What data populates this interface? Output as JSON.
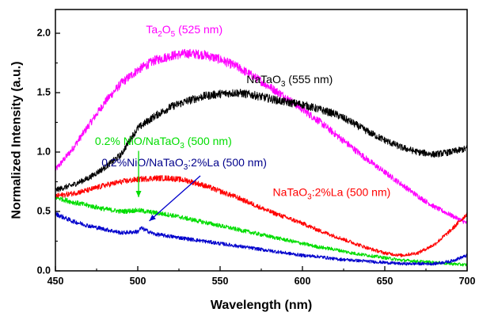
{
  "chart_data": {
    "type": "line",
    "xlabel": "Wavelength (nm)",
    "ylabel": "Normalized Intensity (a.u.)",
    "xlim": [
      450,
      700
    ],
    "ylim": [
      0.0,
      2.2
    ],
    "xticks": [
      450,
      500,
      550,
      600,
      650,
      700
    ],
    "yticks": [
      0.0,
      0.5,
      1.0,
      1.5,
      2.0
    ],
    "xtick_labels": [
      "450",
      "500",
      "550",
      "600",
      "650",
      "700"
    ],
    "ytick_labels": [
      "0.0",
      "0.5",
      "1.0",
      "1.5",
      "2.0"
    ],
    "grid": false,
    "legend": "none (inline labels)",
    "series": [
      {
        "color": "#ff00ff",
        "x": [
          450,
          460,
          470,
          480,
          490,
          500,
          510,
          520,
          530,
          540,
          550,
          560,
          570,
          580,
          590,
          600,
          610,
          620,
          630,
          640,
          650,
          660,
          670,
          680,
          690,
          700
        ],
        "y": [
          0.85,
          1.02,
          1.22,
          1.42,
          1.58,
          1.69,
          1.77,
          1.81,
          1.83,
          1.82,
          1.78,
          1.72,
          1.64,
          1.55,
          1.46,
          1.36,
          1.26,
          1.15,
          1.04,
          0.93,
          0.83,
          0.73,
          0.63,
          0.54,
          0.47,
          0.4
        ]
      },
      {
        "color": "#000000",
        "x": [
          450,
          460,
          470,
          480,
          490,
          495,
          500,
          510,
          520,
          530,
          540,
          550,
          560,
          570,
          580,
          590,
          600,
          610,
          620,
          630,
          640,
          650,
          660,
          670,
          680,
          690,
          700
        ],
        "y": [
          0.68,
          0.72,
          0.78,
          0.87,
          0.98,
          1.1,
          1.2,
          1.3,
          1.38,
          1.43,
          1.47,
          1.49,
          1.5,
          1.48,
          1.45,
          1.42,
          1.4,
          1.36,
          1.32,
          1.25,
          1.17,
          1.1,
          1.04,
          1.0,
          0.98,
          1.0,
          1.03
        ]
      },
      {
        "color": "#00dd00",
        "x": [
          450,
          460,
          470,
          480,
          490,
          500,
          510,
          520,
          530,
          540,
          550,
          560,
          570,
          580,
          590,
          600,
          610,
          620,
          630,
          640,
          650,
          660,
          670,
          680,
          690,
          700
        ],
        "y": [
          0.62,
          0.58,
          0.55,
          0.52,
          0.5,
          0.51,
          0.49,
          0.47,
          0.44,
          0.41,
          0.38,
          0.35,
          0.32,
          0.29,
          0.26,
          0.23,
          0.2,
          0.18,
          0.15,
          0.13,
          0.11,
          0.09,
          0.08,
          0.07,
          0.06,
          0.05
        ]
      },
      {
        "color": "#0000cc",
        "x": [
          450,
          460,
          470,
          480,
          490,
          500,
          502,
          510,
          520,
          530,
          540,
          550,
          560,
          570,
          580,
          590,
          600,
          610,
          620,
          630,
          640,
          650,
          660,
          670,
          680,
          690,
          700
        ],
        "y": [
          0.48,
          0.42,
          0.38,
          0.35,
          0.32,
          0.33,
          0.36,
          0.31,
          0.29,
          0.27,
          0.25,
          0.23,
          0.21,
          0.19,
          0.17,
          0.15,
          0.13,
          0.12,
          0.1,
          0.09,
          0.08,
          0.07,
          0.06,
          0.06,
          0.06,
          0.08,
          0.13
        ]
      },
      {
        "color": "#ff0000",
        "x": [
          450,
          460,
          470,
          480,
          490,
          500,
          510,
          520,
          530,
          540,
          550,
          560,
          570,
          580,
          590,
          600,
          610,
          620,
          630,
          640,
          650,
          660,
          670,
          680,
          690,
          700
        ],
        "y": [
          0.63,
          0.65,
          0.68,
          0.72,
          0.75,
          0.77,
          0.78,
          0.78,
          0.76,
          0.72,
          0.67,
          0.62,
          0.56,
          0.5,
          0.45,
          0.4,
          0.34,
          0.29,
          0.24,
          0.19,
          0.15,
          0.13,
          0.15,
          0.22,
          0.34,
          0.48
        ]
      }
    ],
    "annotations": [
      {
        "id": "ta2o5",
        "parts": [
          [
            "Ta",
            false
          ],
          [
            "2",
            true
          ],
          [
            "O",
            false
          ],
          [
            "5",
            true
          ],
          [
            " (525 nm)",
            false
          ]
        ],
        "color": "#ff00ff",
        "x": 505,
        "y": 2.0
      },
      {
        "id": "natao3",
        "parts": [
          [
            "NaTaO",
            false
          ],
          [
            "3",
            true
          ],
          [
            " (555 nm)",
            false
          ]
        ],
        "color": "#000000",
        "x": 566,
        "y": 1.58
      },
      {
        "id": "nio-natao3",
        "parts": [
          [
            "0.2% NiO/NaTaO",
            false
          ],
          [
            "3",
            true
          ],
          [
            " (500 nm)",
            false
          ]
        ],
        "color": "#00dd00",
        "x": 474,
        "y": 1.06
      },
      {
        "id": "nio-natao3-la",
        "parts": [
          [
            "0.2%NiO/NaTaO",
            false
          ],
          [
            "3",
            true
          ],
          [
            ":2%La (500 nm)",
            false
          ]
        ],
        "color": "#00008b",
        "x": 478,
        "y": 0.88
      },
      {
        "id": "natao3-la",
        "parts": [
          [
            "NaTaO",
            false
          ],
          [
            "3",
            true
          ],
          [
            ":2%La (500 nm)",
            false
          ]
        ],
        "color": "#ff0000",
        "x": 582,
        "y": 0.63
      }
    ],
    "arrows": [
      {
        "id": "green-arrow",
        "color": "#00dd00",
        "from": [
          500.5,
          1.01
        ],
        "to": [
          500.5,
          0.62
        ]
      },
      {
        "id": "blue-arrow",
        "color": "#0000cc",
        "from": [
          538,
          0.8
        ],
        "to": [
          507,
          0.42
        ]
      }
    ]
  }
}
